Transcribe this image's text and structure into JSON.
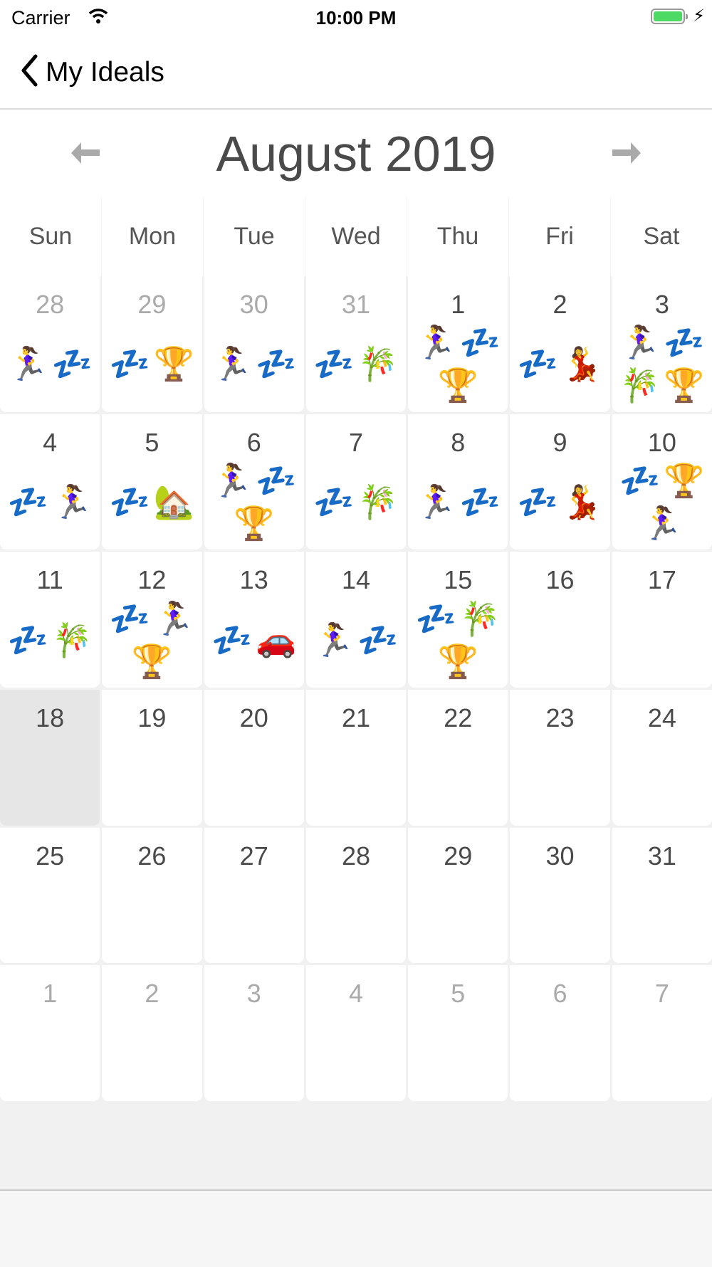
{
  "status_bar": {
    "carrier": "Carrier",
    "time": "10:00 PM",
    "battery_level": 1.0,
    "battery_color": "#4cd964",
    "charging": true
  },
  "nav": {
    "back_label": "My Ideals"
  },
  "calendar": {
    "month_title": "August 2019",
    "prev_icon": "arrow-left-icon",
    "next_icon": "arrow-right-icon",
    "weekdays": [
      "Sun",
      "Mon",
      "Tue",
      "Wed",
      "Thu",
      "Fri",
      "Sat"
    ],
    "weeks": [
      [
        {
          "day": "28",
          "other": true,
          "emojis": [
            "🏃‍♀️",
            "💤"
          ]
        },
        {
          "day": "29",
          "other": true,
          "emojis": [
            "💤",
            "🏆"
          ]
        },
        {
          "day": "30",
          "other": true,
          "emojis": [
            "🏃‍♀️",
            "💤"
          ]
        },
        {
          "day": "31",
          "other": true,
          "emojis": [
            "💤",
            "🎋"
          ]
        },
        {
          "day": "1",
          "emojis": [
            "🏃‍♀️",
            "💤",
            "🏆"
          ]
        },
        {
          "day": "2",
          "emojis": [
            "💤",
            "💃"
          ]
        },
        {
          "day": "3",
          "emojis": [
            "🏃‍♀️",
            "💤",
            "🎋",
            "🏆"
          ]
        }
      ],
      [
        {
          "day": "4",
          "emojis": [
            "💤",
            "🏃‍♀️"
          ]
        },
        {
          "day": "5",
          "emojis": [
            "💤",
            "🏡"
          ]
        },
        {
          "day": "6",
          "emojis": [
            "🏃‍♀️",
            "💤",
            "🏆"
          ]
        },
        {
          "day": "7",
          "emojis": [
            "💤",
            "🎋"
          ]
        },
        {
          "day": "8",
          "emojis": [
            "🏃‍♀️",
            "💤"
          ]
        },
        {
          "day": "9",
          "emojis": [
            "💤",
            "💃"
          ]
        },
        {
          "day": "10",
          "emojis": [
            "💤",
            "🏆",
            "🏃‍♀️"
          ]
        }
      ],
      [
        {
          "day": "11",
          "emojis": [
            "💤",
            "🎋"
          ]
        },
        {
          "day": "12",
          "emojis": [
            "💤",
            "🏃‍♀️",
            "🏆"
          ]
        },
        {
          "day": "13",
          "emojis": [
            "💤",
            "🚗"
          ]
        },
        {
          "day": "14",
          "emojis": [
            "🏃‍♀️",
            "💤"
          ]
        },
        {
          "day": "15",
          "emojis": [
            "💤",
            "🎋",
            "🏆"
          ]
        },
        {
          "day": "16",
          "emojis": []
        },
        {
          "day": "17",
          "emojis": []
        }
      ],
      [
        {
          "day": "18",
          "today": true,
          "emojis": []
        },
        {
          "day": "19",
          "emojis": []
        },
        {
          "day": "20",
          "emojis": []
        },
        {
          "day": "21",
          "emojis": []
        },
        {
          "day": "22",
          "emojis": []
        },
        {
          "day": "23",
          "emojis": []
        },
        {
          "day": "24",
          "emojis": []
        }
      ],
      [
        {
          "day": "25",
          "emojis": []
        },
        {
          "day": "26",
          "emojis": []
        },
        {
          "day": "27",
          "emojis": []
        },
        {
          "day": "28",
          "emojis": []
        },
        {
          "day": "29",
          "emojis": []
        },
        {
          "day": "30",
          "emojis": []
        },
        {
          "day": "31",
          "emojis": []
        }
      ],
      [
        {
          "day": "1",
          "other": true,
          "emojis": []
        },
        {
          "day": "2",
          "other": true,
          "emojis": []
        },
        {
          "day": "3",
          "other": true,
          "emojis": []
        },
        {
          "day": "4",
          "other": true,
          "emojis": []
        },
        {
          "day": "5",
          "other": true,
          "emojis": []
        },
        {
          "day": "6",
          "other": true,
          "emojis": []
        },
        {
          "day": "7",
          "other": true,
          "emojis": []
        }
      ]
    ]
  }
}
